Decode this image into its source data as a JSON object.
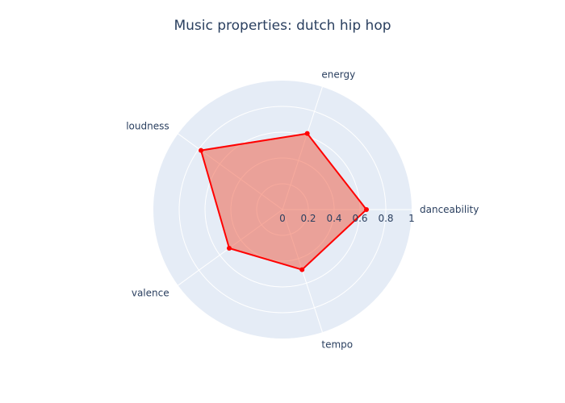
{
  "chart_data": {
    "type": "radar",
    "title": "Music properties: dutch hip hop",
    "axes": [
      "danceability",
      "energy",
      "loudness",
      "valence",
      "tempo"
    ],
    "series": [
      {
        "values": [
          0.65,
          0.62,
          0.78,
          0.51,
          0.49
        ],
        "color": "#ff0000",
        "fill": "rgba(239,85,59,0.5)"
      }
    ],
    "radial_range": [
      0,
      1
    ],
    "radial_ticks": [
      "0",
      "0.2",
      "0.4",
      "0.6",
      "0.8",
      "1"
    ],
    "grid": true,
    "background_color": "#e5ecf6"
  }
}
